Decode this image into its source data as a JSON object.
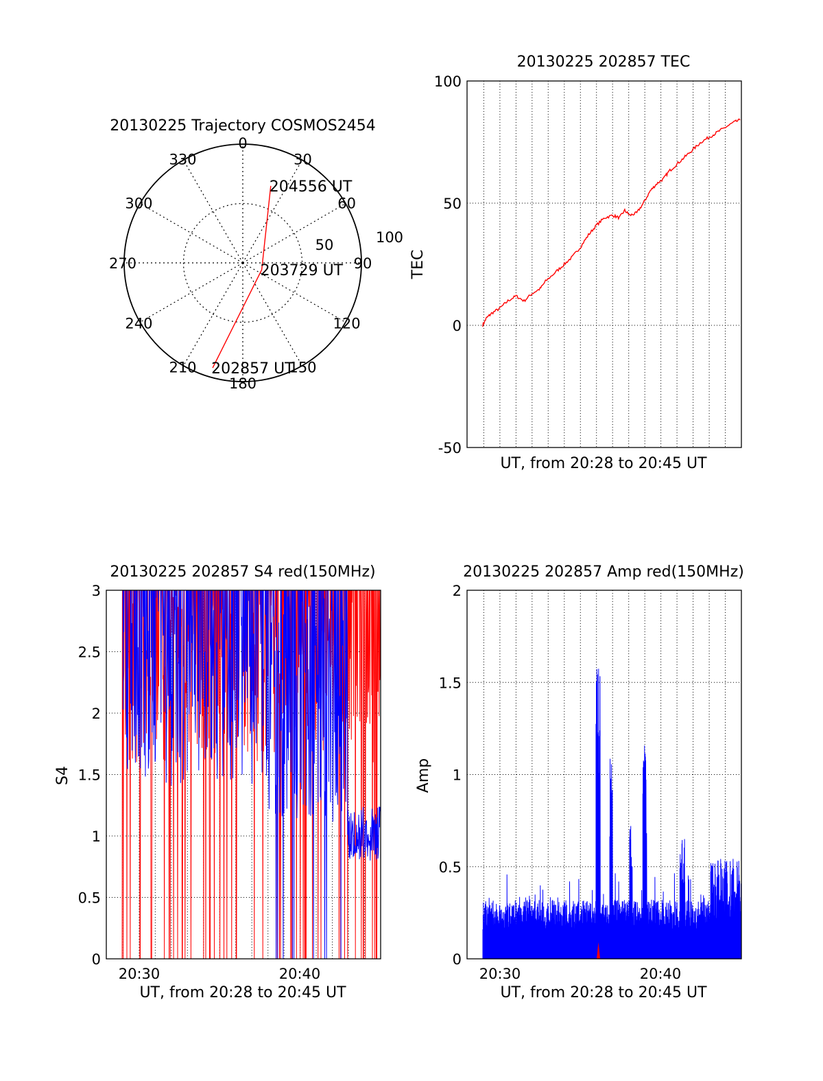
{
  "chart_data": [
    {
      "id": "trajectory",
      "type": "polar",
      "title": "20130225 Trajectory COSMOS2454",
      "azimuth_labels": [
        "0",
        "30",
        "60",
        "90",
        "120",
        "150",
        "180",
        "210",
        "240",
        "270",
        "300",
        "330"
      ],
      "radial_labels": [
        "50",
        "100"
      ],
      "radial_max": 100,
      "series_color": "#ff0000",
      "trajectory": [
        {
          "az": 196,
          "r": 92
        },
        {
          "az": 110,
          "r": 17
        },
        {
          "az": 20,
          "r": 69
        }
      ],
      "annotations": [
        {
          "text": "204556 UT",
          "az": 20,
          "r": 69
        },
        {
          "text": "203729 UT",
          "az": 110,
          "r": 17
        },
        {
          "text": "202857 UT",
          "az": 196,
          "r": 92
        }
      ]
    },
    {
      "id": "tec",
      "type": "line",
      "title": "20130225 202857 TEC",
      "xlabel": "UT, from 20:28 to 20:45 UT",
      "ylabel": "TEC",
      "xlim": [
        20.466,
        20.75
      ],
      "ylim": [
        -50,
        100
      ],
      "yticks": [
        "-50",
        "0",
        "50",
        "100"
      ],
      "series_color": "#ff0000",
      "x": [
        20.4822,
        20.4861,
        20.4917,
        20.5,
        20.5083,
        20.5167,
        20.525,
        20.5333,
        20.5417,
        20.5472,
        20.5583,
        20.5667,
        20.575,
        20.5833,
        20.5917,
        20.6,
        20.6083,
        20.6167,
        20.6236,
        20.6292,
        20.6347,
        20.6417,
        20.6486,
        20.6556,
        20.6625,
        20.6694,
        20.675,
        20.6833,
        20.6917,
        20.7,
        20.7083,
        20.7167,
        20.725,
        20.7333,
        20.7417,
        20.7486
      ],
      "y": [
        0,
        3,
        5,
        7,
        10,
        12,
        10,
        13,
        15,
        18,
        22,
        25,
        28,
        32,
        37,
        41,
        44,
        45,
        44,
        47,
        45,
        46,
        50,
        55,
        58,
        60,
        63,
        66,
        69,
        72,
        75,
        77,
        79,
        81,
        83,
        84
      ]
    },
    {
      "id": "s4",
      "type": "line",
      "title": "20130225 202857 S4 red(150MHz)",
      "xlabel": "UT, from 20:28 to 20:45 UT",
      "ylabel": "S4",
      "xlim": [
        20.466,
        20.75
      ],
      "ylim": [
        0,
        3
      ],
      "yticks": [
        "0",
        "0.5",
        "1",
        "1.5",
        "2",
        "2.5",
        "3"
      ],
      "xticks": [
        "20:30",
        "20:40"
      ],
      "series_colors": [
        "#ff0000",
        "#0000ff"
      ]
    },
    {
      "id": "amp",
      "type": "line",
      "title": "20130225 202857 Amp red(150MHz)",
      "xlabel": "UT, from 20:28 to 20:45 UT",
      "ylabel": "Amp",
      "xlim": [
        20.466,
        20.75
      ],
      "ylim": [
        0,
        2
      ],
      "yticks": [
        "0",
        "0.5",
        "1",
        "1.5",
        "2"
      ],
      "xticks": [
        "20:30",
        "20:40"
      ],
      "series_colors": [
        "#0000ff",
        "#ff0000"
      ]
    }
  ]
}
